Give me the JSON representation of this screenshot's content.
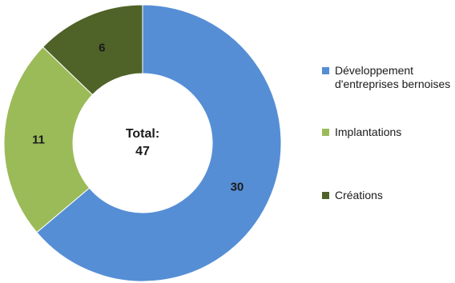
{
  "chart_data": {
    "type": "pie",
    "donut": true,
    "slices": [
      {
        "label": "Développement d'entreprises bernoises",
        "value": 30,
        "value_label": "30",
        "color": "#558ED5"
      },
      {
        "label": "Implantations",
        "value": 11,
        "value_label": "11",
        "color": "#9BBB59"
      },
      {
        "label": "Créations",
        "value": 6,
        "value_label": "6",
        "color": "#4F6228"
      }
    ],
    "center_text": [
      "Total:",
      "47"
    ],
    "legend_position": "right",
    "legend": [
      {
        "line1": "Développement",
        "line2": "d'entreprises bernoises",
        "color": "#558ED5"
      },
      {
        "line1": "Implantations",
        "color": "#9BBB59"
      },
      {
        "line1": "Créations",
        "color": "#4F6228"
      }
    ]
  }
}
